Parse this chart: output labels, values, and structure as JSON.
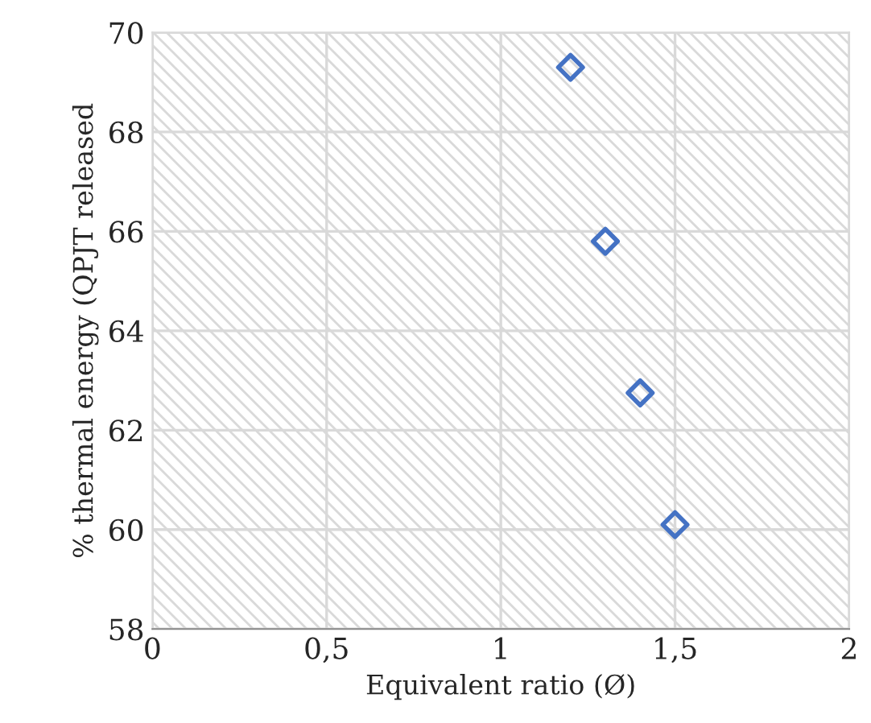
{
  "chart_data": {
    "type": "scatter",
    "xlabel": "Equivalent ratio (Ø)",
    "ylabel": "% thermal energy (QPJT released",
    "x": [
      1.2,
      1.3,
      1.4,
      1.5
    ],
    "series": [
      {
        "color": "#4472c4",
        "values": [
          69.3,
          65.8,
          62.75,
          60.1
        ]
      }
    ],
    "xlim": [
      0,
      2
    ],
    "xticks": [
      0,
      {
        "value": 0.5,
        "label": "0,5"
      },
      1,
      {
        "value": 1.5,
        "label": "1,5"
      },
      2
    ],
    "ylim": [
      58,
      70
    ],
    "yticks": [
      58,
      60,
      62,
      64,
      66,
      68,
      70
    ],
    "grid": true,
    "marker": "diamond"
  }
}
